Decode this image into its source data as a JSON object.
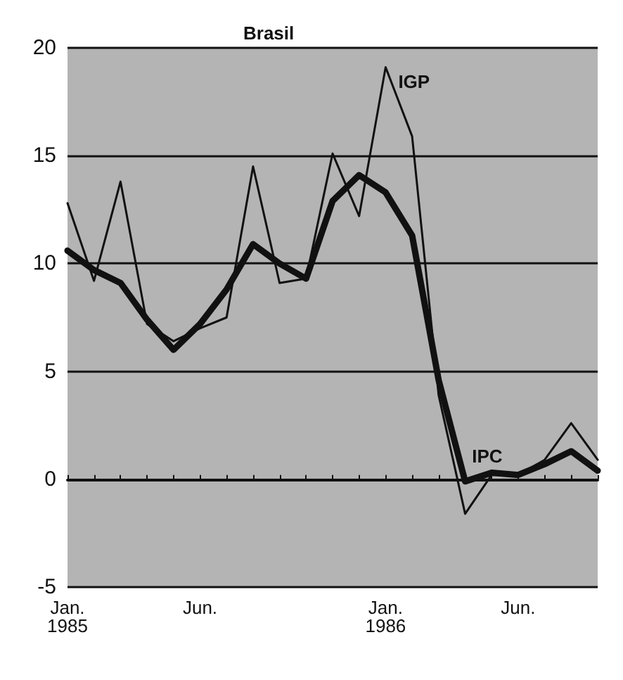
{
  "chart_data": {
    "type": "line",
    "title": "Brasil",
    "categories": [
      "Jan.\n1985",
      null,
      null,
      null,
      null,
      "Jun.",
      null,
      null,
      null,
      null,
      null,
      null,
      "Jan.\n1986",
      null,
      null,
      null,
      null,
      "Jun.",
      null,
      null,
      null
    ],
    "series": [
      {
        "name": "IGP",
        "color": "#111111",
        "values": [
          12.8,
          9.2,
          13.8,
          7.2,
          6.4,
          7.0,
          7.5,
          14.5,
          9.1,
          9.3,
          15.1,
          12.2,
          19.1,
          15.9,
          3.9,
          -1.6,
          0.2,
          0.2,
          0.9,
          2.6,
          0.9
        ]
      },
      {
        "name": "IPC",
        "color": "#111111",
        "values": [
          10.6,
          9.7,
          9.1,
          7.4,
          6.0,
          7.2,
          8.8,
          10.9,
          10.0,
          9.3,
          12.9,
          14.1,
          13.3,
          11.3,
          4.6,
          -0.1,
          0.3,
          0.2,
          0.7,
          1.3,
          0.4
        ]
      }
    ],
    "ylim": [
      -5,
      20
    ],
    "yticks": [
      -5,
      0,
      5,
      10,
      15,
      20
    ],
    "grid": "y",
    "legend": false,
    "marker": "none",
    "line_style": "solid"
  }
}
